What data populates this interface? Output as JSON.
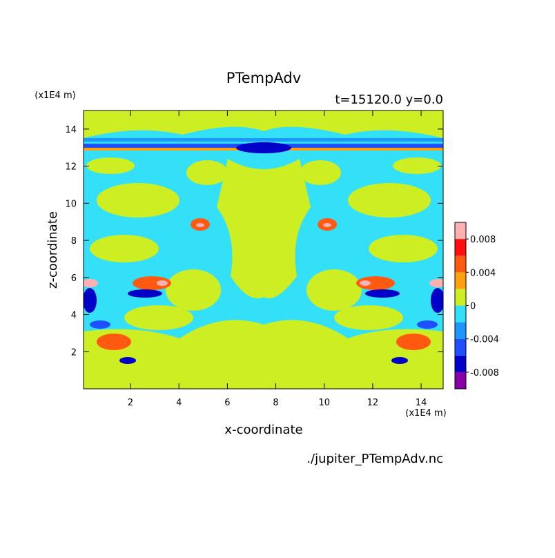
{
  "chart_data": {
    "type": "contour",
    "title": "PTempAdv",
    "subtitle": "t=15120.0 y=0.0",
    "x_label": "x-coordinate",
    "y_label": "z-coordinate",
    "x_unit": "(x1E4 m)",
    "y_unit": "(x1E4 m)",
    "source": "./jupiter_PTempAdv.nc",
    "xlim": [
      0.06,
      14.91
    ],
    "xticks": [
      2,
      4,
      6,
      8,
      10,
      12,
      14
    ],
    "ylim": [
      0,
      15
    ],
    "yticks": [
      2,
      4,
      6,
      8,
      10,
      12,
      14
    ],
    "colorbar": {
      "levels": [
        -0.01,
        -0.008,
        -0.006,
        -0.004,
        -0.002,
        0,
        0.002,
        0.004,
        0.006,
        0.008,
        0.01
      ],
      "colors": [
        "#8a00a8",
        "#0000c8",
        "#1e50ff",
        "#1e96ff",
        "#33e0f8",
        "#ccee22",
        "#ffa010",
        "#ff5a10",
        "#ff1010",
        "#ffb0b0"
      ],
      "ticks": [
        -0.008,
        -0.004,
        0,
        0.004,
        0.008
      ]
    }
  }
}
